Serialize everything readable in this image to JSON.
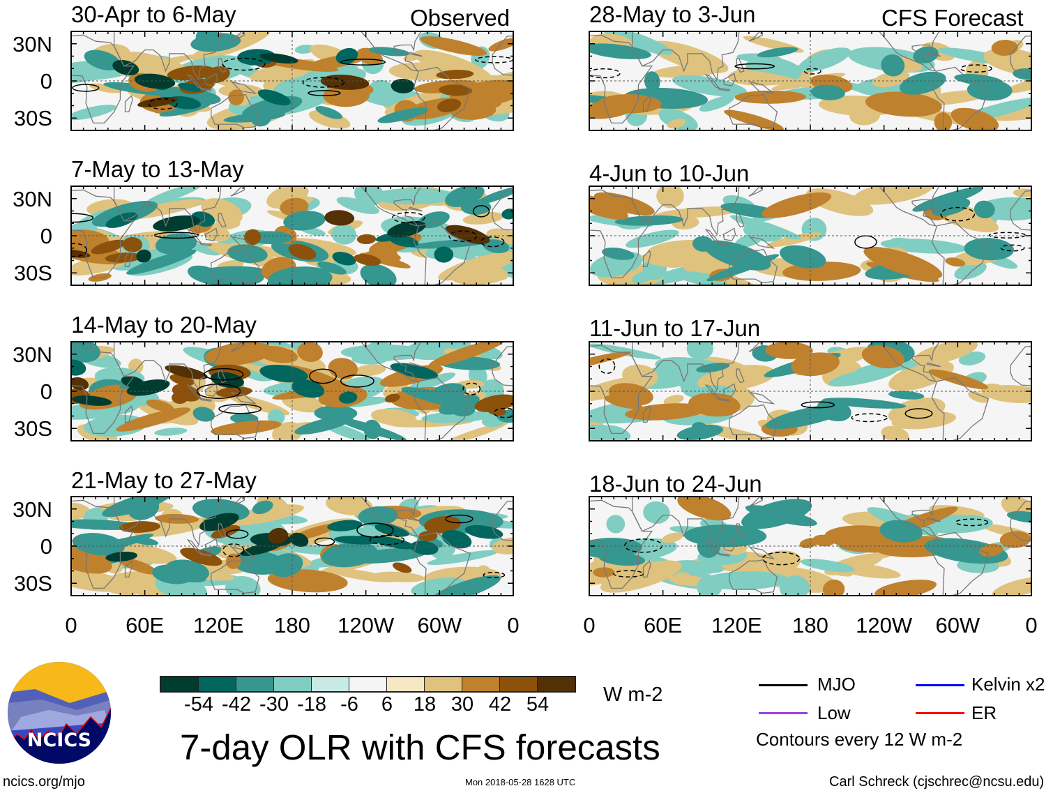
{
  "left_header": "Observed",
  "right_header": "CFS Forecast",
  "panels_left": [
    "30-Apr to 6-May",
    "7-May to 13-May",
    "14-May to 20-May",
    "21-May to 27-May"
  ],
  "panels_right": [
    "28-May to 3-Jun",
    "4-Jun to 10-Jun",
    "11-Jun to 17-Jun",
    "18-Jun to 24-Jun"
  ],
  "title": "7-day OLR with CFS forecasts",
  "units": "W m-2",
  "site": "ncics.org/mjo",
  "timestamp": "Mon 2018-05-28 1628 UTC",
  "author": "Carl Schreck (cjschrec@ncsu.edu)",
  "logo_text": "NCICS",
  "legend": {
    "items": [
      {
        "label": "MJO",
        "color": "#000000"
      },
      {
        "label": "Kelvin x2",
        "color": "#0000ff"
      },
      {
        "label": "Low",
        "color": "#a040e0"
      },
      {
        "label": "ER",
        "color": "#ff0000"
      }
    ],
    "note": "Contours every 12 W m-2"
  },
  "chart_data": {
    "type": "heatmap",
    "title": "7-day OLR with CFS forecasts",
    "colorbar": {
      "levels": [
        "-54",
        "-42",
        "-30",
        "-18",
        "-6",
        "6",
        "18",
        "30",
        "42",
        "54"
      ],
      "colors": [
        "#003c30",
        "#01665e",
        "#35978f",
        "#80cdc1",
        "#c7eae5",
        "#f5f5f5",
        "#f6e8c3",
        "#dfc27d",
        "#bf812d",
        "#8c510a",
        "#543005"
      ],
      "units": "W m-2"
    },
    "lat_ticks": [
      "30N",
      "0",
      "30S"
    ],
    "lon_ticks": [
      "0",
      "60E",
      "120E",
      "180",
      "120W",
      "60W",
      "0"
    ],
    "lon_range": [
      0,
      360
    ],
    "lat_range": [
      -40,
      40
    ]
  }
}
